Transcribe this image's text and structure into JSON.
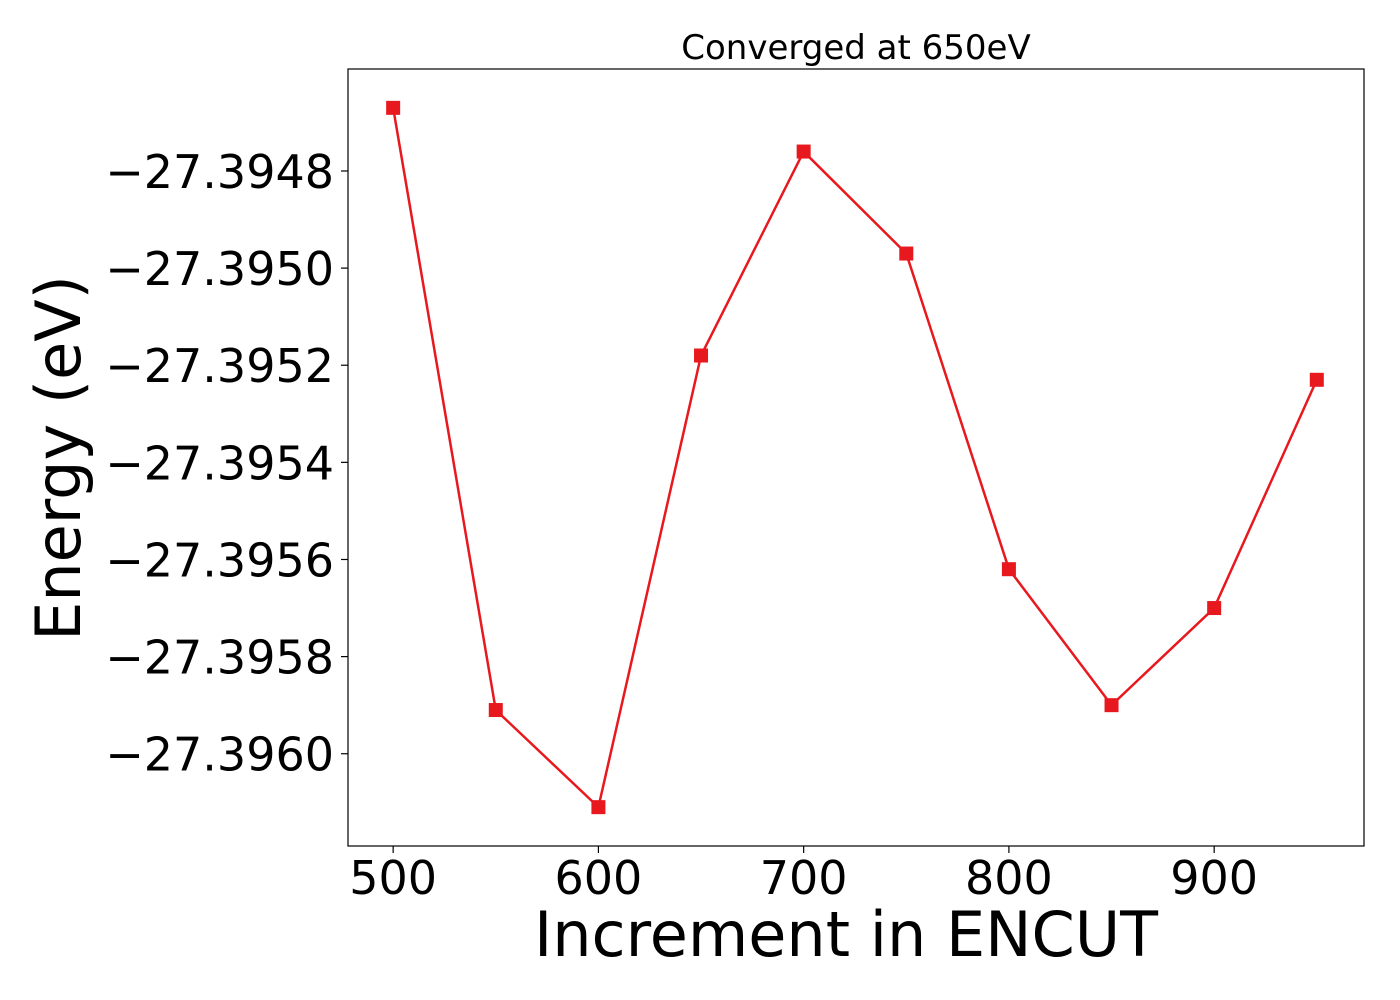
{
  "chart_data": {
    "type": "line",
    "title": "Converged at 650eV",
    "xlabel": "Increment in ENCUT",
    "ylabel": "Energy (eV)",
    "xlim": [
      478,
      973
    ],
    "ylim": [
      -27.39619,
      -27.39459
    ],
    "xticks": [
      500,
      600,
      700,
      800,
      900
    ],
    "xtick_labels": [
      "500",
      "600",
      "700",
      "800",
      "900"
    ],
    "yticks": [
      -27.3948,
      -27.395,
      -27.3952,
      -27.3954,
      -27.3956,
      -27.3958,
      -27.396
    ],
    "ytick_labels": [
      "−27.3948",
      "−27.3950",
      "−27.3952",
      "−27.3954",
      "−27.3956",
      "−27.3958",
      "−27.3960"
    ],
    "grid": false,
    "series": [
      {
        "color": "#e8191e",
        "marker": "square",
        "x": [
          500,
          550,
          600,
          650,
          700,
          750,
          800,
          850,
          900,
          950
        ],
        "y": [
          -27.39467,
          -27.39591,
          -27.39611,
          -27.39518,
          -27.39476,
          -27.39497,
          -27.39562,
          -27.3959,
          -27.3957,
          -27.39523
        ]
      }
    ]
  }
}
